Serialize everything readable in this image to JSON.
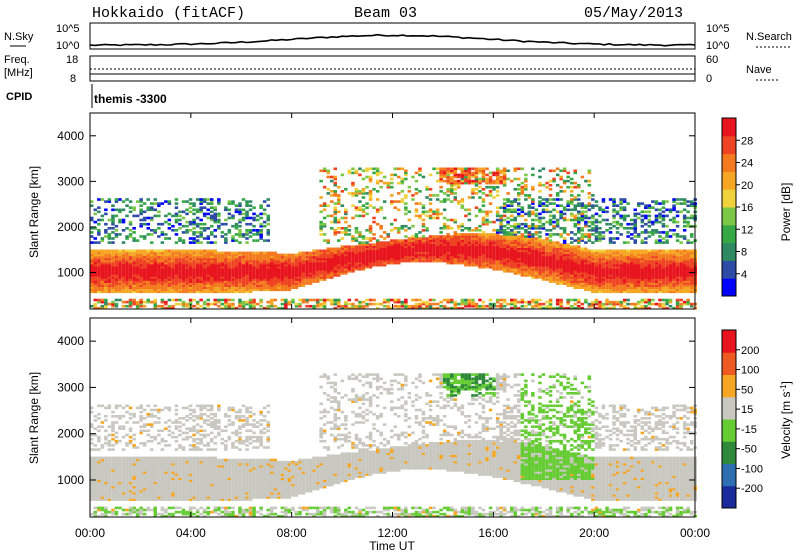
{
  "header": {
    "station": "Hokkaido (fitACF)",
    "beam": "Beam 03",
    "date": "05/May/2013"
  },
  "top_panel": {
    "left_label": "N.Sky",
    "right_label": "N.Search",
    "left_ticks": [
      "10^5",
      "10^0"
    ],
    "right_ticks": [
      "10^5",
      "10^0"
    ]
  },
  "freq_panel": {
    "left_label_1": "Freq.",
    "left_label_2": "[MHz]",
    "right_label": "Nave",
    "left_ticks": [
      "18",
      "8"
    ],
    "right_ticks": [
      "60",
      "0"
    ]
  },
  "cpid": {
    "label": "CPID",
    "value": "themis -3300"
  },
  "power_panel": {
    "ylabel": "Slant Range [km]",
    "yticks": [
      "4000",
      "3000",
      "2000",
      "1000"
    ],
    "colorbar_label": "Power [dB]",
    "colorbar_ticks": [
      "28",
      "24",
      "20",
      "16",
      "12",
      "8",
      "4"
    ],
    "colors": [
      "#0000ff",
      "#2c4aa6",
      "#2f8a62",
      "#35a845",
      "#7cc846",
      "#f0d33c",
      "#f5a623",
      "#f47a1f",
      "#ef4423",
      "#e8141e"
    ]
  },
  "velocity_panel": {
    "ylabel": "Slant Range [km]",
    "yticks": [
      "4000",
      "3000",
      "2000",
      "1000"
    ],
    "colorbar_label": "Velocity [m s",
    "colorbar_unit_sup": "-1",
    "colorbar_label_end": "]",
    "colorbar_ticks": [
      "200",
      "100",
      "50",
      "15",
      "-15",
      "-50",
      "-100",
      "-200"
    ],
    "colors": [
      "#1a2a9a",
      "#2d6fb0",
      "#2e8a3a",
      "#66cc33",
      "#c8c8c0",
      "#f5a623",
      "#ef5a23",
      "#e8141e"
    ]
  },
  "x_axis": {
    "label": "Time UT",
    "ticks": [
      "00:00",
      "04:00",
      "08:00",
      "12:00",
      "16:00",
      "20:00",
      "00:00"
    ]
  },
  "chart_data": {
    "type": "heatmap",
    "title": "Hokkaido (fitACF) Beam 03 05/May/2013",
    "xlabel": "Time UT",
    "ylabel": "Slant Range [km]",
    "x_range_hours": [
      0,
      24
    ],
    "y_range_km": [
      200,
      4500
    ],
    "panels": [
      {
        "name": "Power",
        "unit": "dB",
        "colorbar_range": [
          0,
          30
        ]
      },
      {
        "name": "Velocity",
        "unit": "m s^-1",
        "colorbar_range": [
          -250,
          250
        ]
      }
    ]
  }
}
